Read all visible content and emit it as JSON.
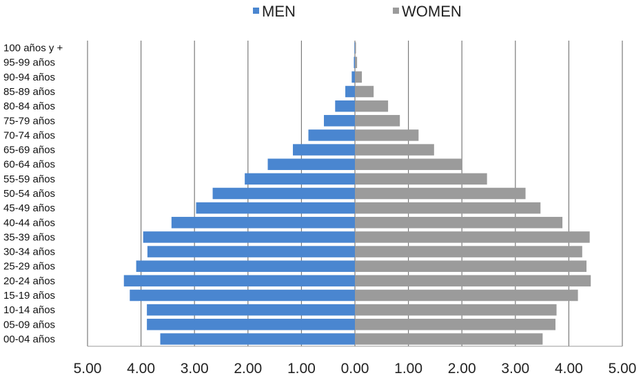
{
  "chart_data": {
    "type": "bar",
    "orientation": "horizontal",
    "layout": "population-pyramid",
    "categories": [
      "100 años y +",
      "95-99 años",
      "90-94 años",
      "85-89 años",
      "80-84 años",
      "75-79 años",
      "70-74 años",
      "65-69 años",
      "60-64 años",
      "55-59 años",
      "50-54 años",
      "45-49 años",
      "40-44 años",
      "35-39 años",
      "30-34 años",
      "25-29 años",
      "20-24 años",
      "15-19 años",
      "10-14 años",
      "05-09 años",
      "00-04 años"
    ],
    "series": [
      {
        "name": "MEN",
        "color": "#4a86d0",
        "side": "left",
        "values": [
          0.01,
          0.02,
          0.06,
          0.18,
          0.37,
          0.58,
          0.87,
          1.16,
          1.63,
          2.06,
          2.66,
          2.97,
          3.43,
          3.96,
          3.88,
          4.09,
          4.32,
          4.21,
          3.89,
          3.89,
          3.64
        ]
      },
      {
        "name": "WOMEN",
        "color": "#9b9b9b",
        "side": "right",
        "values": [
          0.02,
          0.04,
          0.13,
          0.35,
          0.62,
          0.84,
          1.19,
          1.48,
          2.01,
          2.47,
          3.19,
          3.47,
          3.88,
          4.39,
          4.25,
          4.33,
          4.41,
          4.17,
          3.77,
          3.75,
          3.51
        ]
      }
    ],
    "xlim": [
      -5,
      5
    ],
    "x_ticks": [
      -5,
      -4,
      -3,
      -2,
      -1,
      0,
      1,
      2,
      3,
      4,
      5
    ],
    "x_tick_labels": [
      "5.00",
      "4.00",
      "3.00",
      "2.00",
      "1.00",
      "0.00",
      "1.00",
      "2.00",
      "3.00",
      "4.00",
      "5.00"
    ],
    "vertical_grid": true,
    "gridline_color": "#7a7a7a",
    "legend_position": "top-center",
    "title": "",
    "xlabel": "",
    "ylabel": ""
  }
}
